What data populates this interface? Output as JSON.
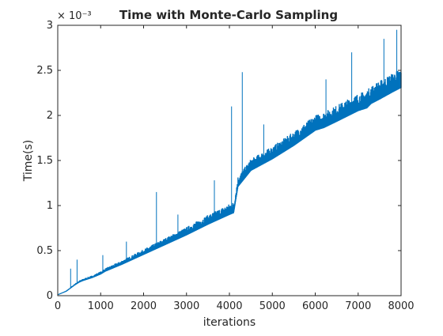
{
  "chart_data": {
    "type": "line",
    "title": "Time with Monte-Carlo Sampling",
    "xlabel": "iterations",
    "ylabel": "Time(s)",
    "xlim": [
      0,
      8000
    ],
    "ylim": [
      0,
      0.003
    ],
    "x_ticks": [
      0,
      1000,
      2000,
      3000,
      4000,
      5000,
      6000,
      7000,
      8000
    ],
    "x_tick_labels": [
      "0",
      "1000",
      "2000",
      "3000",
      "4000",
      "5000",
      "6000",
      "7000",
      "8000"
    ],
    "y_ticks": [
      0,
      0.0005,
      0.001,
      0.0015,
      0.002,
      0.0025,
      0.003
    ],
    "y_tick_labels": [
      "0",
      "0.5",
      "1",
      "1.5",
      "2",
      "2.5",
      "3"
    ],
    "y_exponent_label": "× 10⁻³",
    "grid": false,
    "legend": "none",
    "series": [
      {
        "color": "#0072BD",
        "x": [
          0,
          200,
          400,
          500,
          600,
          800,
          1000,
          1100,
          1200,
          1500,
          2000,
          2500,
          3000,
          3500,
          4000,
          4100,
          4200,
          4300,
          4500,
          5000,
          5500,
          6000,
          6200,
          6500,
          7000,
          7200,
          7300,
          7500,
          7800,
          8000
        ],
        "y": [
          1e-05,
          5e-05,
          0.00012,
          0.00015,
          0.00017,
          0.0002,
          0.00024,
          0.00027,
          0.00029,
          0.00035,
          0.00046,
          0.00057,
          0.00068,
          0.0008,
          0.00091,
          0.00093,
          0.00122,
          0.00128,
          0.0014,
          0.00153,
          0.00168,
          0.00185,
          0.00188,
          0.00195,
          0.00207,
          0.0021,
          0.00215,
          0.0022,
          0.00228,
          0.00233
        ]
      }
    ],
    "spikes": [
      {
        "x": 300,
        "y": 0.0003
      },
      {
        "x": 450,
        "y": 0.0004
      },
      {
        "x": 1050,
        "y": 0.00045
      },
      {
        "x": 1600,
        "y": 0.0006
      },
      {
        "x": 2300,
        "y": 0.00115
      },
      {
        "x": 2800,
        "y": 0.0009
      },
      {
        "x": 3650,
        "y": 0.00128
      },
      {
        "x": 4050,
        "y": 0.0021
      },
      {
        "x": 4300,
        "y": 0.00248
      },
      {
        "x": 4800,
        "y": 0.0019
      },
      {
        "x": 6250,
        "y": 0.0024
      },
      {
        "x": 6850,
        "y": 0.0027
      },
      {
        "x": 7600,
        "y": 0.00285
      },
      {
        "x": 7900,
        "y": 0.00295
      }
    ]
  }
}
